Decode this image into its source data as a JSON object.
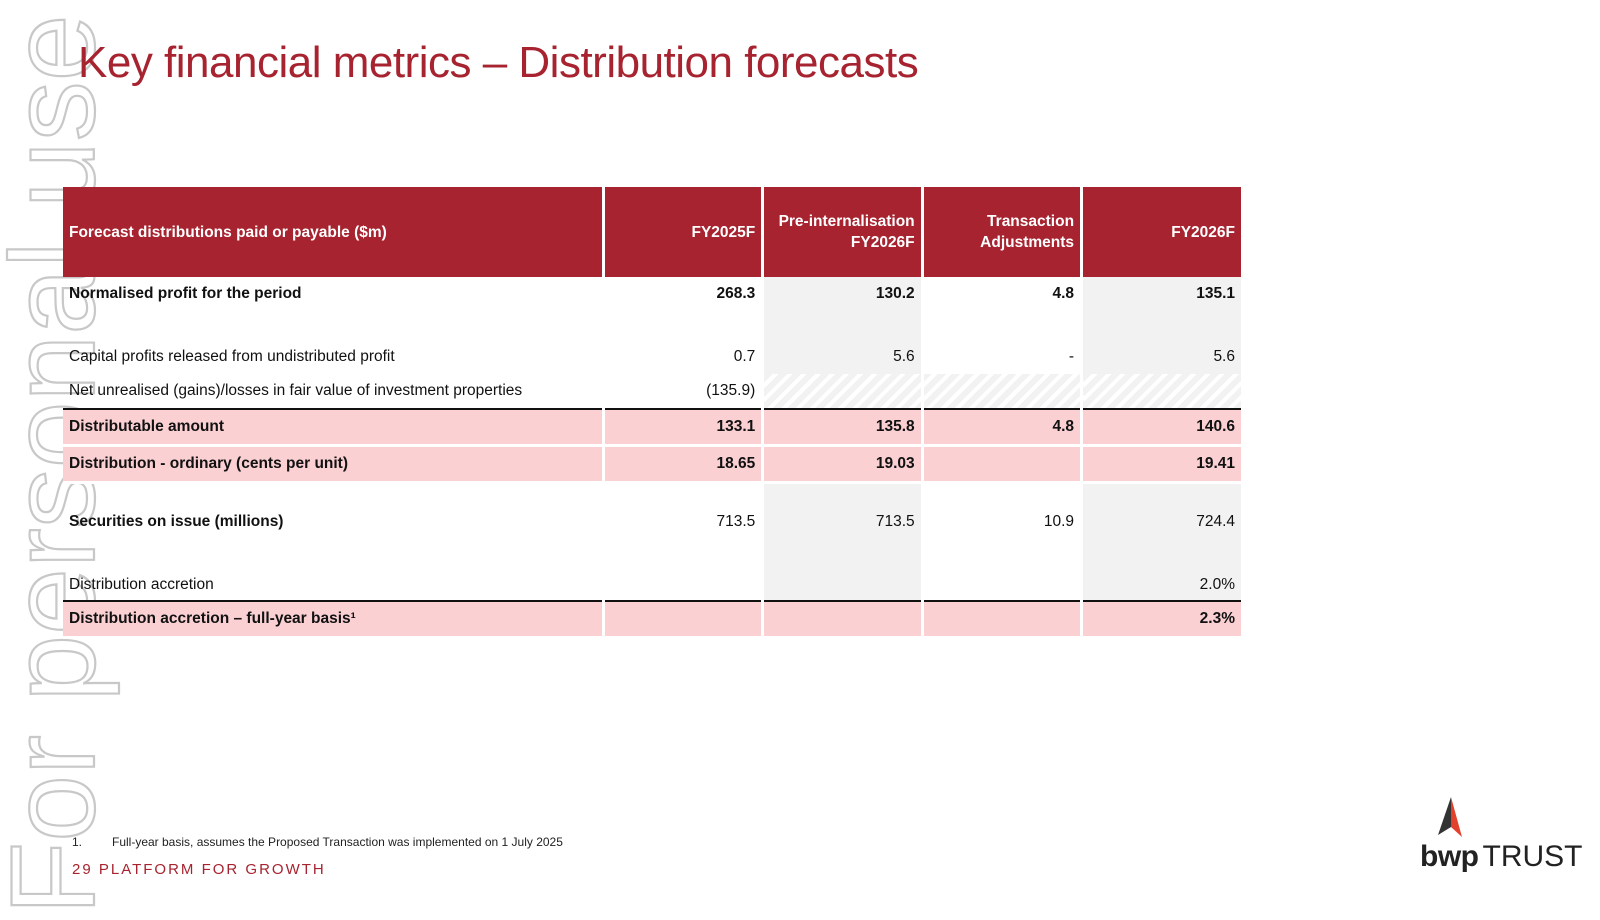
{
  "slide": {
    "title": "Key financial metrics – Distribution forecasts",
    "page_number": "29",
    "footer_text": "PLATFORM FOR GROWTH",
    "watermark": "For personal use only"
  },
  "table": {
    "headers": [
      "Forecast distributions paid or payable ($m)",
      "FY2025F",
      "Pre-internalisation FY2026F",
      "Transaction Adjustments",
      "FY2026F"
    ],
    "rows": [
      {
        "label": "Normalised profit for the period",
        "values": [
          "268.3",
          "130.2",
          "4.8",
          "135.1"
        ]
      },
      {
        "label": "Capital profits released from undistributed profit",
        "values": [
          "0.7",
          "5.6",
          "-",
          "5.6"
        ]
      },
      {
        "label": "Net unrealised (gains)/losses in fair value of investment properties",
        "values": [
          "(135.9)",
          "",
          "",
          ""
        ]
      },
      {
        "label": "Distributable amount",
        "values": [
          "133.1",
          "135.8",
          "4.8",
          "140.6"
        ]
      },
      {
        "label": "Distribution - ordinary (cents per unit)",
        "values": [
          "18.65",
          "19.03",
          "",
          "19.41"
        ]
      },
      {
        "label": "Securities on issue (millions)",
        "values": [
          "713.5",
          "713.5",
          "10.9",
          "724.4"
        ]
      },
      {
        "label": "Distribution accretion",
        "values": [
          "",
          "",
          "",
          "2.0%"
        ]
      },
      {
        "label": "Distribution accretion – full-year basis¹",
        "values": [
          "",
          "",
          "",
          "2.3%"
        ]
      }
    ]
  },
  "footnote": {
    "number": "1.",
    "text": "Full-year basis, assumes the Proposed Transaction was  implemented on 1 July 2025"
  },
  "logo": {
    "brand": "bwp",
    "suffix": "TRUST",
    "colors": {
      "red": "#e2412c",
      "dark": "#333333"
    }
  },
  "colors": {
    "accent": "#a6232f",
    "highlight_row": "#fad0d3",
    "shaded_col": "#f2f2f2"
  }
}
